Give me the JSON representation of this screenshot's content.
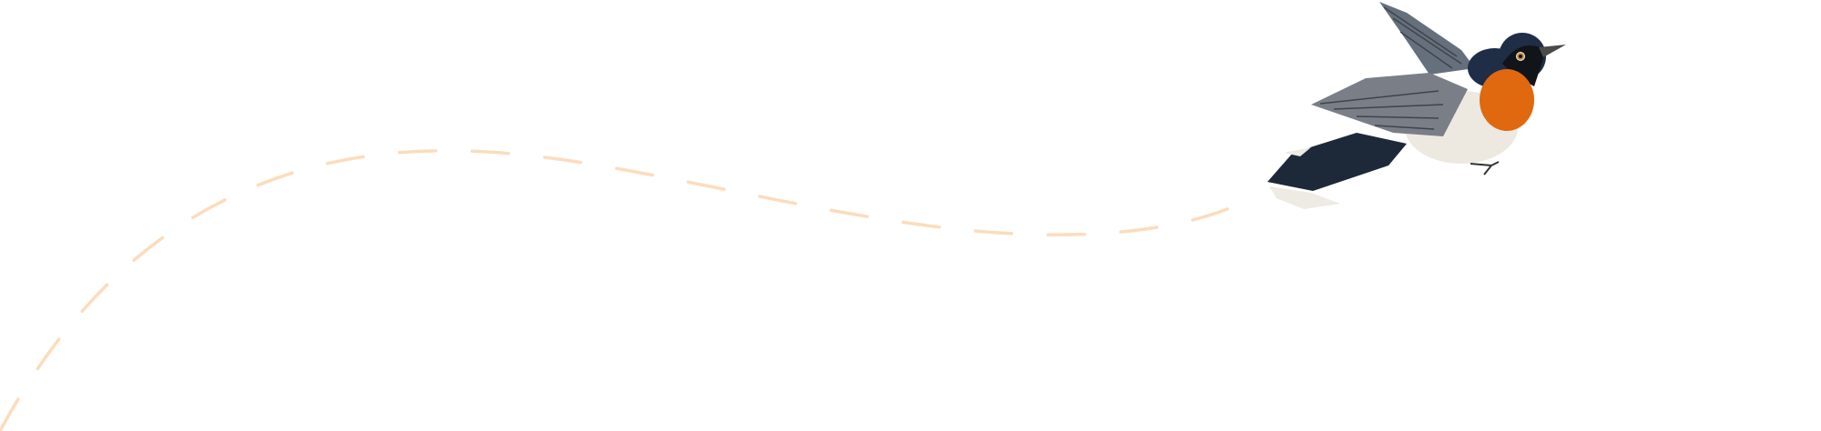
{
  "illustration": {
    "subject": "bird-in-flight",
    "colors": {
      "flight_path": "#fcdcbc",
      "throat": "#e0680f",
      "head": "#1f2d46",
      "tail": "#1d2838",
      "body": "#ede9e1",
      "wing": "#7a7f87"
    }
  }
}
